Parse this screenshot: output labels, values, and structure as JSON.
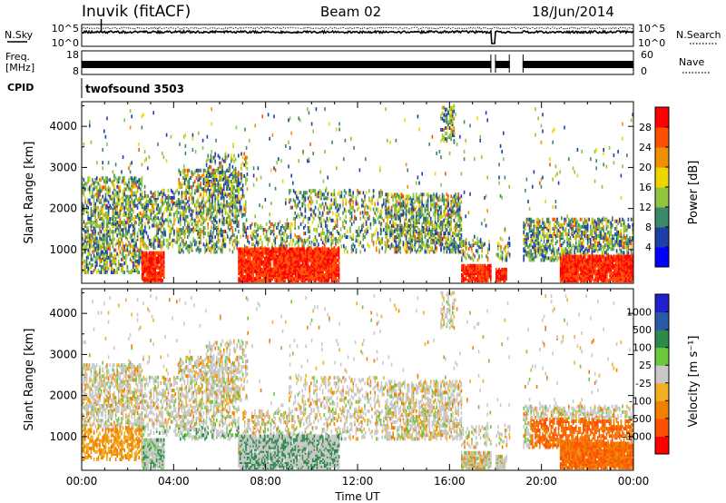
{
  "header": {
    "station": "Inuvik (fitACF)",
    "beam": "Beam 02",
    "date": "18/Jun/2014"
  },
  "strips": {
    "nsky_label": "N.Sky",
    "nsearch_label": "N.Search",
    "noise_ticks": [
      "10^5",
      "10^0"
    ],
    "freq_label": "Freq.",
    "freq_unit": "[MHz]",
    "freq_ticks": [
      "18",
      "8"
    ],
    "nave_label": "Nave",
    "nave_ticks": [
      "60",
      "0"
    ],
    "cpid_label": "CPID",
    "cpid_value": "twofsound 3503"
  },
  "chart_data": [
    {
      "type": "heatmap",
      "name_label": "Power [dB]",
      "ylabel": "Slant Range [km]",
      "xlabel": "",
      "xlim_hours": [
        0,
        24
      ],
      "ylim_km": [
        180,
        4600
      ],
      "y_ticks": [
        "4000",
        "3000",
        "2000",
        "1000"
      ],
      "y_tick_values": [
        4000,
        3000,
        2000,
        1000
      ],
      "colorbar_labels": [
        "28",
        "24",
        "20",
        "16",
        "12",
        "8",
        "4"
      ],
      "colorbar_colors": [
        "#0000ff",
        "#1f3fa8",
        "#3a8a6a",
        "#8fc43c",
        "#f0d400",
        "#f09000",
        "#ff5000",
        "#ff0000"
      ]
    },
    {
      "type": "heatmap",
      "name_label": "Velocity [m s⁻¹]",
      "ylabel": "Slant Range [km]",
      "xlabel": "Time UT",
      "xlim_hours": [
        0,
        24
      ],
      "ylim_km": [
        180,
        4600
      ],
      "y_ticks": [
        "4000",
        "3000",
        "2000",
        "1000"
      ],
      "y_tick_values": [
        4000,
        3000,
        2000,
        1000
      ],
      "x_ticks": [
        "00:00",
        "04:00",
        "08:00",
        "12:00",
        "16:00",
        "20:00",
        "00:00"
      ],
      "x_tick_hours": [
        0,
        4,
        8,
        12,
        16,
        20,
        24
      ],
      "colorbar_labels": [
        "1000",
        "500",
        "100",
        "25",
        "-25",
        "-100",
        "-500",
        "-1000"
      ],
      "colorbar_colors": [
        "#ff0000",
        "#ff5000",
        "#f08000",
        "#f0b020",
        "#c8c8c8",
        "#6ac83a",
        "#2e8a4a",
        "#2a5aa8",
        "#2020d0"
      ]
    }
  ]
}
